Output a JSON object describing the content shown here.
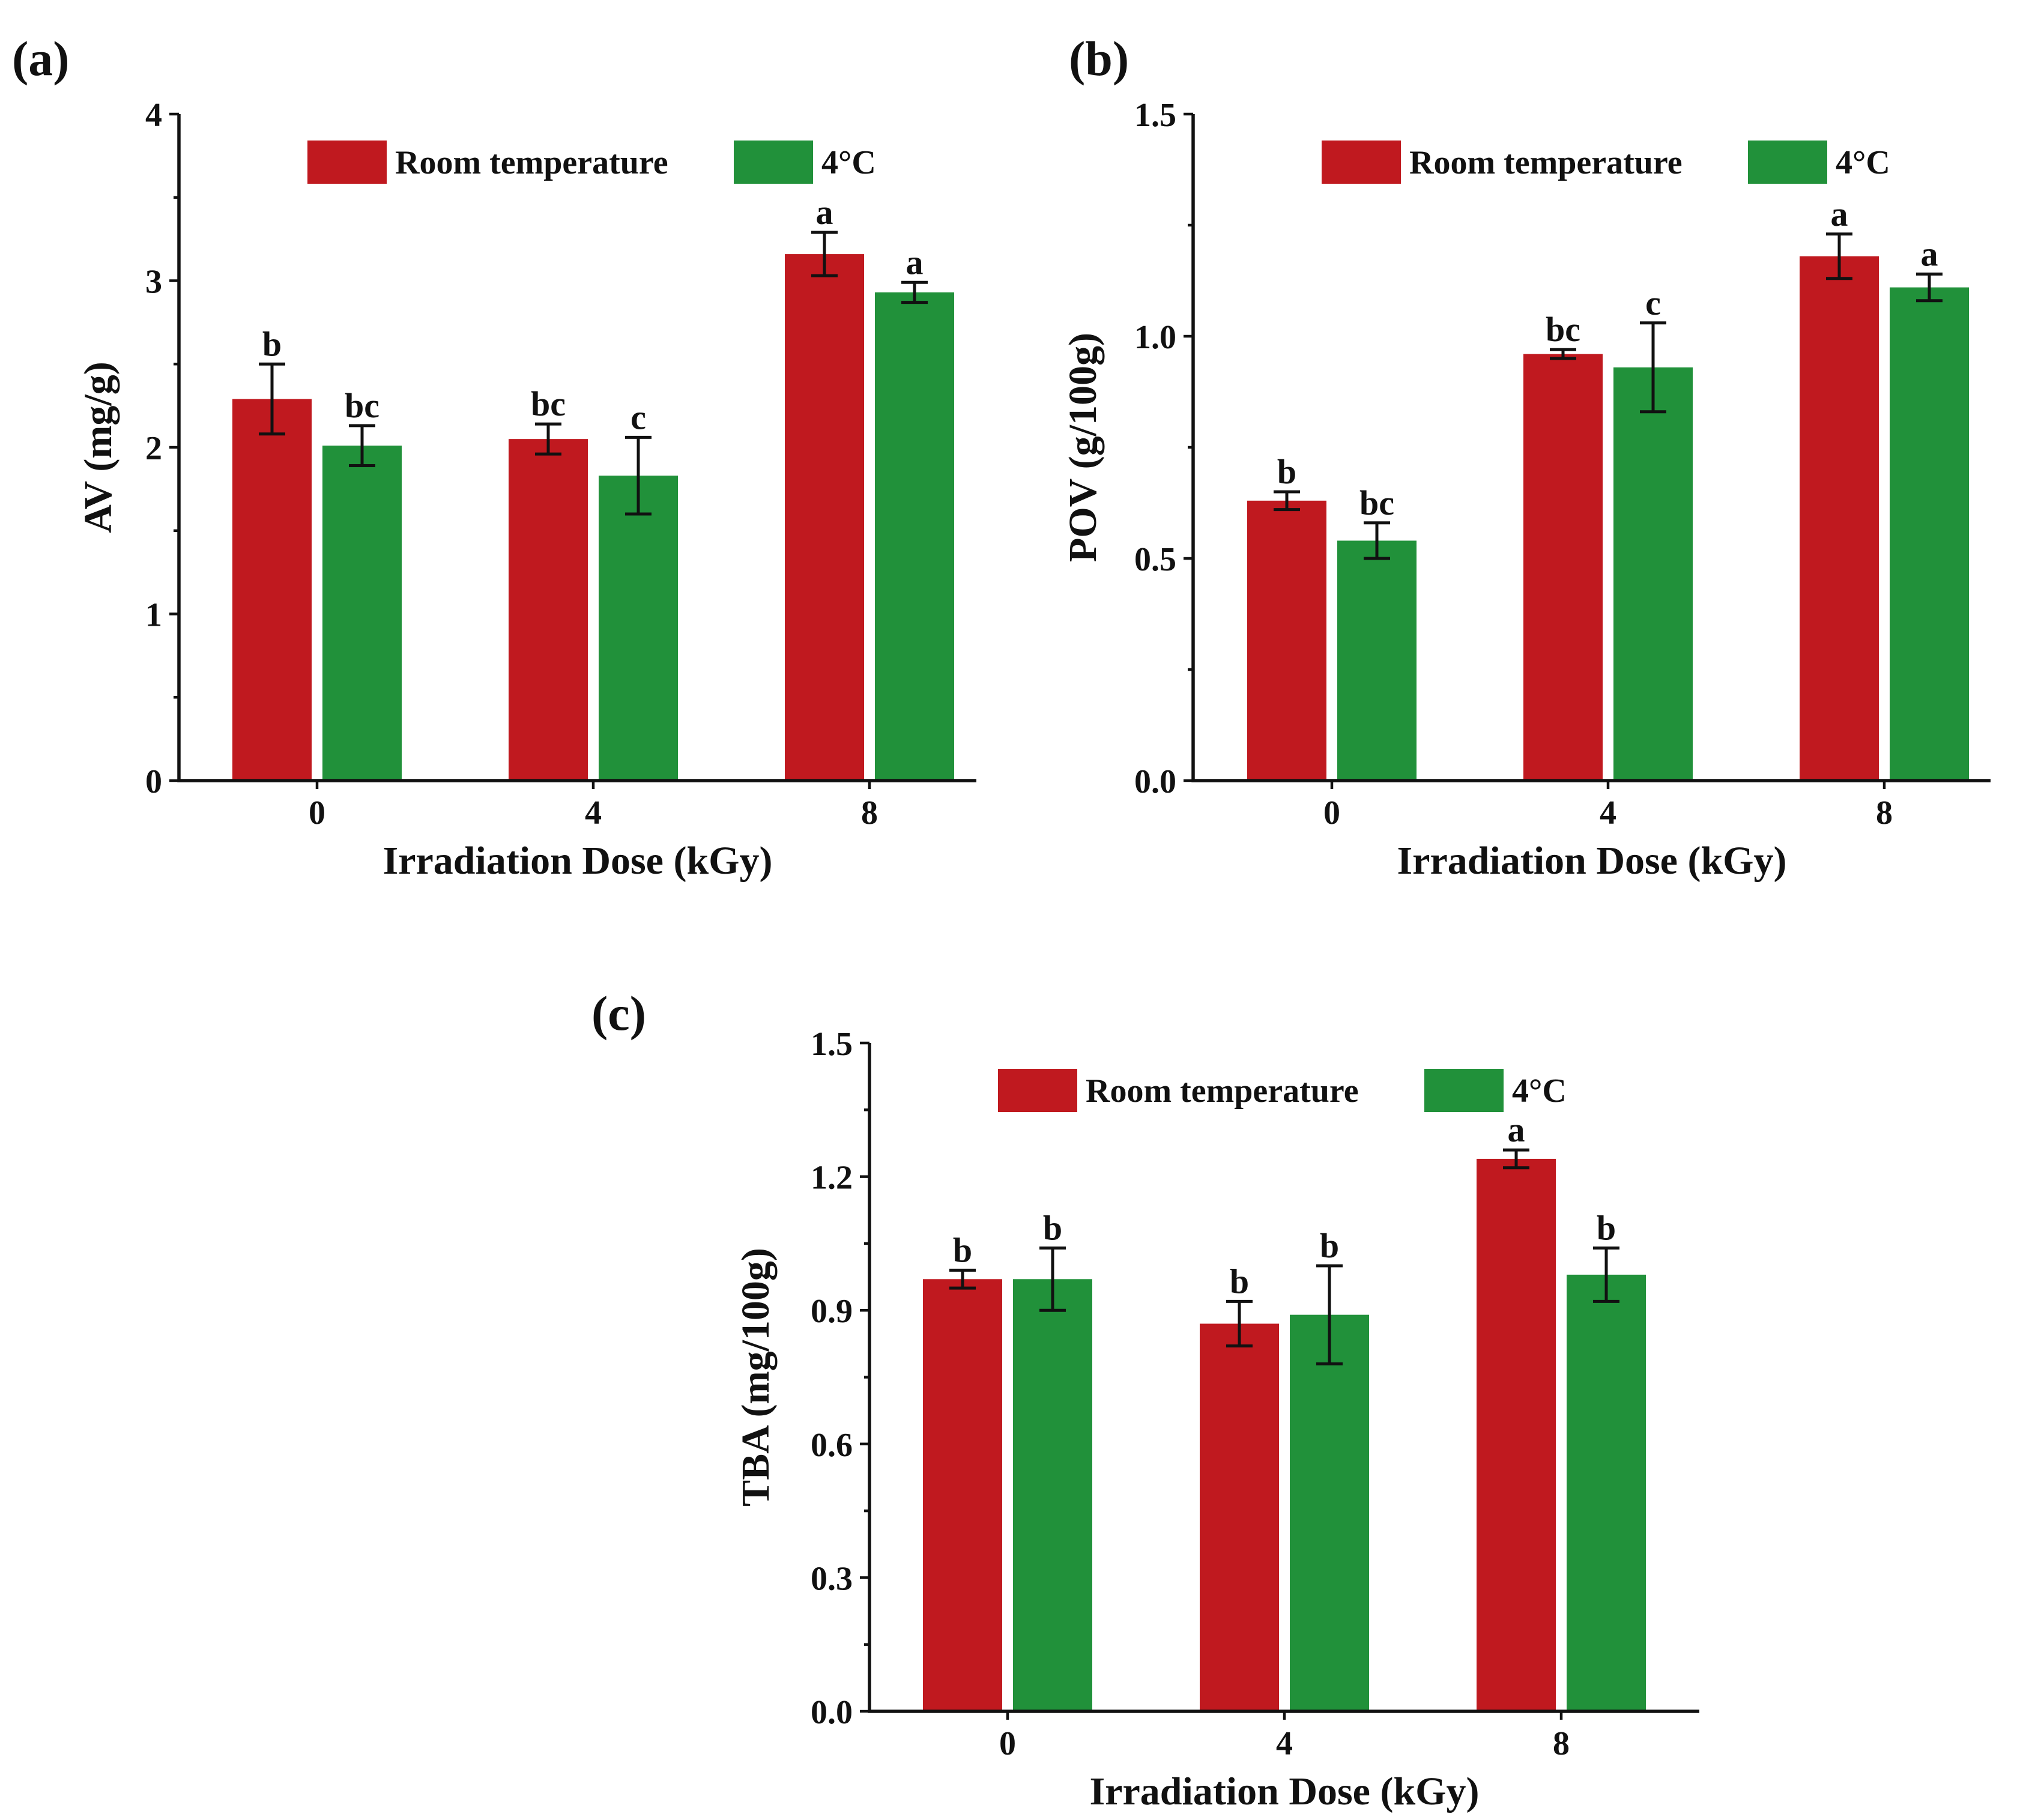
{
  "colors": {
    "room": "#c0191f",
    "cold": "#21913a",
    "text": "#111111"
  },
  "legend": {
    "series": [
      "Room temperature",
      "4°C"
    ]
  },
  "chart_data": [
    {
      "type": "bar",
      "panel_label": "(a)",
      "title": "",
      "xlabel": "Irradiation Dose (kGy)",
      "ylabel": "AV (mg/g)",
      "categories": [
        "0",
        "4",
        "8"
      ],
      "ylim": [
        0,
        4
      ],
      "yticks": [
        0,
        1,
        2,
        3,
        4
      ],
      "ytick_labels": [
        "0",
        "1",
        "2",
        "3",
        "4"
      ],
      "legend_position": "top-center",
      "series": [
        {
          "name": "Room temperature",
          "values": [
            2.29,
            2.05,
            3.16
          ],
          "errors": [
            0.21,
            0.09,
            0.13
          ],
          "letters": [
            "b",
            "bc",
            "a"
          ]
        },
        {
          "name": "4°C",
          "values": [
            2.01,
            1.83,
            2.93
          ],
          "errors": [
            0.12,
            0.23,
            0.06
          ],
          "letters": [
            "bc",
            "c",
            "a"
          ]
        }
      ]
    },
    {
      "type": "bar",
      "panel_label": "(b)",
      "title": "",
      "xlabel": "Irradiation Dose (kGy)",
      "ylabel": "POV (g/100g)",
      "categories": [
        "0",
        "4",
        "8"
      ],
      "ylim": [
        0,
        1.5
      ],
      "yticks": [
        0,
        0.5,
        1.0,
        1.5
      ],
      "ytick_labels": [
        "0.0",
        "0.5",
        "1.0",
        "1.5"
      ],
      "legend_position": "top-center",
      "series": [
        {
          "name": "Room temperature",
          "values": [
            0.63,
            0.96,
            1.18
          ],
          "errors": [
            0.02,
            0.01,
            0.05
          ],
          "letters": [
            "b",
            "bc",
            "a"
          ]
        },
        {
          "name": "4°C",
          "values": [
            0.54,
            0.93,
            1.11
          ],
          "errors": [
            0.04,
            0.1,
            0.03
          ],
          "letters": [
            "bc",
            "c",
            "a"
          ]
        }
      ]
    },
    {
      "type": "bar",
      "panel_label": "(c)",
      "title": "",
      "xlabel": "Irradiation Dose (kGy)",
      "ylabel": "TBA (mg/100g)",
      "categories": [
        "0",
        "4",
        "8"
      ],
      "ylim": [
        0,
        1.5
      ],
      "yticks": [
        0,
        0.3,
        0.6,
        0.9,
        1.2,
        1.5
      ],
      "ytick_labels": [
        "0.0",
        "0.3",
        "0.6",
        "0.9",
        "1.2",
        "1.5"
      ],
      "legend_position": "top-center",
      "series": [
        {
          "name": "Room temperature",
          "values": [
            0.97,
            0.87,
            1.24
          ],
          "errors": [
            0.02,
            0.05,
            0.02
          ],
          "letters": [
            "b",
            "b",
            "a"
          ]
        },
        {
          "name": "4°C",
          "values": [
            0.97,
            0.89,
            0.98
          ],
          "errors": [
            0.07,
            0.11,
            0.06
          ],
          "letters": [
            "b",
            "b",
            "b"
          ]
        }
      ]
    }
  ]
}
